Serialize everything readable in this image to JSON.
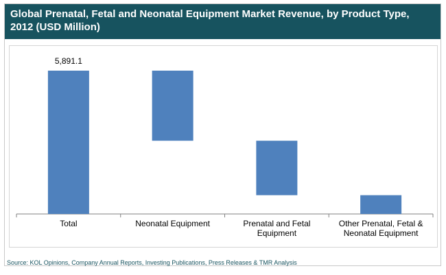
{
  "title": "Global Prenatal, Fetal and Neonatal Equipment Market Revenue, by Product Type, 2012 (USD Million)",
  "source": "Source: KOL Opinions, Company Annual Reports, Investing Publications, Press Releases & TMR Analysis",
  "colors": {
    "bar": "#4f81bd",
    "title_bg": "#17535f",
    "title_text": "#ffffff",
    "axis": "#808080"
  },
  "chart_data": {
    "type": "bar",
    "subtype": "waterfall",
    "categories": [
      [
        "Total"
      ],
      [
        "Neonatal Equipment"
      ],
      [
        "Prenatal and Fetal",
        "Equipment"
      ],
      [
        "Other Prenatal, Fetal &",
        "Neonatal Equipment"
      ]
    ],
    "series": [
      {
        "ranges": [
          [
            0,
            5891.1
          ],
          [
            3010,
            5891.1
          ],
          [
            772,
            3010
          ],
          [
            0,
            772
          ]
        ]
      }
    ],
    "data_labels": [
      "5,891.1",
      "",
      "",
      ""
    ],
    "ylim": [
      0,
      5891.1
    ],
    "grid": false,
    "legend": false,
    "xlabel": "",
    "ylabel": ""
  }
}
